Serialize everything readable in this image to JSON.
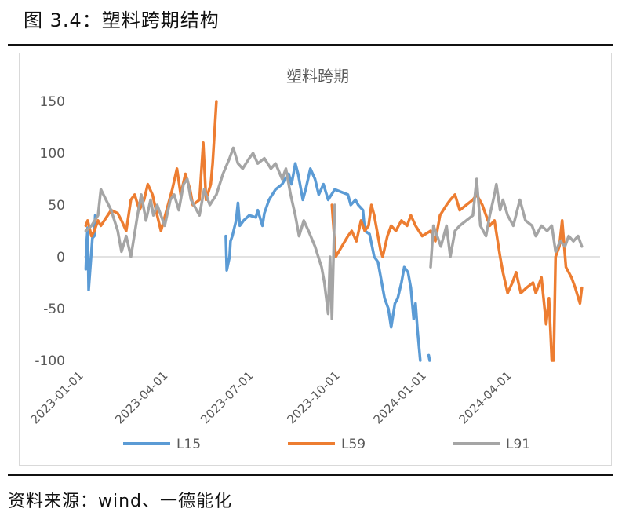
{
  "figure_title": "图 3.4：塑料跨期结构",
  "source": "资料来源：wind、一德能化",
  "chart_data": {
    "type": "line",
    "title": "塑料跨期",
    "xlabel": "",
    "ylabel": "",
    "ylim": [
      -100,
      150
    ],
    "yticks": [
      150,
      100,
      50,
      0,
      -50,
      -100
    ],
    "xticks": [
      "2023-01-01",
      "2023-04-01",
      "2023-07-01",
      "2023-10-01",
      "2024-01-01",
      "2024-04-01"
    ],
    "legend_position": "bottom",
    "grid": false,
    "series": [
      {
        "name": "L15",
        "color": "#5B9BD5",
        "points": [
          [
            "2023-01-03",
            -12
          ],
          [
            "2023-01-04",
            15
          ],
          [
            "2023-01-05",
            28
          ],
          [
            "2023-01-06",
            -32
          ],
          [
            "2023-01-09",
            5
          ],
          [
            "2023-01-10",
            18
          ],
          [
            "2023-01-12",
            20
          ],
          [
            "2023-01-13",
            40
          ],
          [
            null,
            null
          ],
          [
            "2023-06-01",
            20
          ],
          [
            "2023-06-02",
            -13
          ],
          [
            "2023-06-05",
            0
          ],
          [
            "2023-06-06",
            15
          ],
          [
            "2023-06-08",
            20
          ],
          [
            "2023-06-12",
            35
          ],
          [
            "2023-06-14",
            52
          ],
          [
            "2023-06-16",
            30
          ],
          [
            "2023-06-20",
            35
          ],
          [
            "2023-06-26",
            40
          ],
          [
            "2023-07-03",
            38
          ],
          [
            "2023-07-05",
            45
          ],
          [
            "2023-07-10",
            30
          ],
          [
            "2023-07-12",
            42
          ],
          [
            "2023-07-17",
            55
          ],
          [
            "2023-07-24",
            65
          ],
          [
            "2023-07-31",
            70
          ],
          [
            "2023-08-03",
            75
          ],
          [
            "2023-08-07",
            80
          ],
          [
            "2023-08-10",
            70
          ],
          [
            "2023-08-14",
            90
          ],
          [
            "2023-08-17",
            80
          ],
          [
            "2023-08-22",
            55
          ],
          [
            "2023-08-25",
            65
          ],
          [
            "2023-08-30",
            85
          ],
          [
            "2023-09-04",
            75
          ],
          [
            "2023-09-08",
            60
          ],
          [
            "2023-09-13",
            70
          ],
          [
            "2023-09-18",
            55
          ],
          [
            "2023-09-25",
            65
          ],
          [
            "2023-10-09",
            60
          ],
          [
            "2023-10-12",
            50
          ],
          [
            "2023-10-17",
            55
          ],
          [
            "2023-10-20",
            50
          ],
          [
            "2023-10-25",
            45
          ],
          [
            "2023-10-27",
            25
          ],
          [
            "2023-11-01",
            22
          ],
          [
            "2023-11-06",
            0
          ],
          [
            "2023-11-10",
            -5
          ],
          [
            "2023-11-14",
            -25
          ],
          [
            "2023-11-17",
            -40
          ],
          [
            "2023-11-21",
            -50
          ],
          [
            "2023-11-24",
            -68
          ],
          [
            "2023-11-28",
            -45
          ],
          [
            "2023-12-01",
            -40
          ],
          [
            "2023-12-05",
            -25
          ],
          [
            "2023-12-08",
            -10
          ],
          [
            "2023-12-12",
            -15
          ],
          [
            "2023-12-15",
            -30
          ],
          [
            "2023-12-18",
            -60
          ],
          [
            "2023-12-20",
            -45
          ],
          [
            "2023-12-22",
            -70
          ],
          [
            "2023-12-25",
            -100
          ],
          [
            null,
            null
          ],
          [
            "2024-01-03",
            -95
          ],
          [
            "2024-01-04",
            -100
          ]
        ]
      },
      {
        "name": "L59",
        "color": "#ED7D31",
        "points": [
          [
            "2023-01-03",
            30
          ],
          [
            "2023-01-05",
            35
          ],
          [
            "2023-01-09",
            20
          ],
          [
            "2023-01-12",
            25
          ],
          [
            "2023-01-16",
            35
          ],
          [
            "2023-01-19",
            30
          ],
          [
            "2023-01-30",
            45
          ],
          [
            "2023-02-06",
            42
          ],
          [
            "2023-02-10",
            35
          ],
          [
            "2023-02-15",
            25
          ],
          [
            "2023-02-20",
            55
          ],
          [
            "2023-02-24",
            60
          ],
          [
            "2023-03-01",
            45
          ],
          [
            "2023-03-06",
            55
          ],
          [
            "2023-03-10",
            70
          ],
          [
            "2023-03-15",
            60
          ],
          [
            "2023-03-20",
            40
          ],
          [
            "2023-03-24",
            25
          ],
          [
            "2023-03-30",
            45
          ],
          [
            "2023-04-05",
            65
          ],
          [
            "2023-04-10",
            85
          ],
          [
            "2023-04-14",
            60
          ],
          [
            "2023-04-19",
            80
          ],
          [
            "2023-04-24",
            65
          ],
          [
            "2023-04-27",
            50
          ],
          [
            "2023-05-04",
            55
          ],
          [
            "2023-05-08",
            110
          ],
          [
            "2023-05-11",
            55
          ],
          [
            "2023-05-16",
            70
          ],
          [
            "2023-05-18",
            90
          ],
          [
            "2023-05-22",
            150
          ],
          [
            null,
            null
          ],
          [
            "2023-09-22",
            50
          ],
          [
            "2023-09-26",
            0
          ],
          [
            "2023-10-09",
            20
          ],
          [
            "2023-10-13",
            25
          ],
          [
            "2023-10-18",
            15
          ],
          [
            "2023-10-23",
            35
          ],
          [
            "2023-10-27",
            25
          ],
          [
            "2023-10-31",
            30
          ],
          [
            "2023-11-03",
            50
          ],
          [
            "2023-11-06",
            40
          ],
          [
            "2023-11-09",
            25
          ],
          [
            "2023-11-13",
            5
          ],
          [
            "2023-11-15",
            0
          ],
          [
            "2023-11-20",
            20
          ],
          [
            "2023-11-24",
            30
          ],
          [
            "2023-11-29",
            25
          ],
          [
            "2023-12-05",
            35
          ],
          [
            "2023-12-11",
            30
          ],
          [
            "2023-12-15",
            40
          ],
          [
            "2023-12-20",
            30
          ],
          [
            "2023-12-27",
            20
          ],
          [
            "2024-01-05",
            25
          ],
          [
            "2024-01-10",
            15
          ],
          [
            "2024-01-15",
            40
          ],
          [
            "2024-01-22",
            50
          ],
          [
            "2024-01-26",
            55
          ],
          [
            "2024-01-31",
            60
          ],
          [
            "2024-02-05",
            45
          ],
          [
            "2024-02-19",
            55
          ],
          [
            "2024-02-23",
            60
          ],
          [
            "2024-02-29",
            50
          ],
          [
            "2024-03-08",
            30
          ],
          [
            "2024-03-13",
            35
          ],
          [
            "2024-03-19",
            0
          ],
          [
            "2024-03-22",
            -15
          ],
          [
            "2024-03-27",
            -35
          ],
          [
            "2024-04-01",
            -25
          ],
          [
            "2024-04-05",
            -15
          ],
          [
            "2024-04-10",
            -35
          ],
          [
            "2024-04-16",
            -30
          ],
          [
            "2024-04-23",
            -25
          ],
          [
            "2024-04-26",
            -35
          ],
          [
            "2024-05-02",
            -20
          ],
          [
            "2024-05-07",
            -65
          ],
          [
            "2024-05-10",
            -40
          ],
          [
            "2024-05-13",
            -100
          ],
          [
            "2024-05-15",
            -100
          ],
          [
            "2024-05-17",
            0
          ],
          [
            "2024-05-21",
            10
          ],
          [
            "2024-05-24",
            35
          ],
          [
            "2024-05-28",
            -10
          ],
          [
            "2024-06-03",
            -20
          ],
          [
            "2024-06-07",
            -30
          ],
          [
            "2024-06-12",
            -45
          ],
          [
            "2024-06-14",
            -30
          ]
        ]
      },
      {
        "name": "L91",
        "color": "#A5A5A5",
        "points": [
          [
            "2023-01-03",
            25
          ],
          [
            "2023-01-09",
            30
          ],
          [
            "2023-01-16",
            40
          ],
          [
            "2023-01-19",
            65
          ],
          [
            "2023-01-30",
            45
          ],
          [
            "2023-02-06",
            25
          ],
          [
            "2023-02-10",
            5
          ],
          [
            "2023-02-15",
            20
          ],
          [
            "2023-02-20",
            0
          ],
          [
            "2023-02-27",
            40
          ],
          [
            "2023-03-03",
            60
          ],
          [
            "2023-03-08",
            35
          ],
          [
            "2023-03-13",
            55
          ],
          [
            "2023-03-16",
            40
          ],
          [
            "2023-03-20",
            50
          ],
          [
            "2023-03-24",
            40
          ],
          [
            "2023-03-28",
            30
          ],
          [
            "2023-04-03",
            55
          ],
          [
            "2023-04-07",
            60
          ],
          [
            "2023-04-12",
            45
          ],
          [
            "2023-04-17",
            70
          ],
          [
            "2023-04-21",
            75
          ],
          [
            "2023-04-25",
            55
          ],
          [
            "2023-05-04",
            40
          ],
          [
            "2023-05-09",
            65
          ],
          [
            "2023-05-15",
            50
          ],
          [
            "2023-05-22",
            60
          ],
          [
            "2023-05-29",
            80
          ],
          [
            "2023-06-05",
            95
          ],
          [
            "2023-06-09",
            105
          ],
          [
            "2023-06-14",
            90
          ],
          [
            "2023-06-19",
            85
          ],
          [
            "2023-06-26",
            95
          ],
          [
            "2023-06-30",
            100
          ],
          [
            "2023-07-05",
            90
          ],
          [
            "2023-07-12",
            95
          ],
          [
            "2023-07-19",
            85
          ],
          [
            "2023-07-24",
            90
          ],
          [
            "2023-07-31",
            75
          ],
          [
            "2023-08-04",
            85
          ],
          [
            "2023-08-09",
            60
          ],
          [
            "2023-08-14",
            40
          ],
          [
            "2023-08-18",
            20
          ],
          [
            "2023-08-23",
            35
          ],
          [
            "2023-08-28",
            25
          ],
          [
            "2023-09-04",
            10
          ],
          [
            "2023-09-11",
            -10
          ],
          [
            "2023-09-14",
            -25
          ],
          [
            "2023-09-18",
            -55
          ],
          [
            "2023-09-20",
            0
          ],
          [
            "2023-09-22",
            -60
          ],
          [
            "2023-09-25",
            50
          ]
        ]
      },
      {
        "name": "L91",
        "color": "#A5A5A5",
        "hide_in_legend": true,
        "points": [
          [
            "2024-01-05",
            -10
          ],
          [
            "2024-01-08",
            30
          ],
          [
            "2024-01-12",
            20
          ],
          [
            "2024-01-16",
            10
          ],
          [
            "2024-01-22",
            30
          ],
          [
            "2024-01-26",
            0
          ],
          [
            "2024-01-31",
            25
          ],
          [
            "2024-02-05",
            30
          ],
          [
            "2024-02-19",
            40
          ],
          [
            "2024-02-23",
            75
          ],
          [
            "2024-02-27",
            30
          ],
          [
            "2024-03-04",
            20
          ],
          [
            "2024-03-08",
            40
          ],
          [
            "2024-03-13",
            60
          ],
          [
            "2024-03-15",
            70
          ],
          [
            "2024-03-19",
            45
          ],
          [
            "2024-03-22",
            55
          ],
          [
            "2024-03-27",
            40
          ],
          [
            "2024-04-02",
            30
          ],
          [
            "2024-04-09",
            55
          ],
          [
            "2024-04-15",
            35
          ],
          [
            "2024-04-22",
            30
          ],
          [
            "2024-04-26",
            20
          ],
          [
            "2024-05-02",
            30
          ],
          [
            "2024-05-08",
            25
          ],
          [
            "2024-05-13",
            30
          ],
          [
            "2024-05-17",
            5
          ],
          [
            "2024-05-22",
            15
          ],
          [
            "2024-05-27",
            10
          ],
          [
            "2024-05-31",
            20
          ],
          [
            "2024-06-05",
            15
          ],
          [
            "2024-06-10",
            20
          ],
          [
            "2024-06-14",
            10
          ]
        ]
      }
    ]
  }
}
